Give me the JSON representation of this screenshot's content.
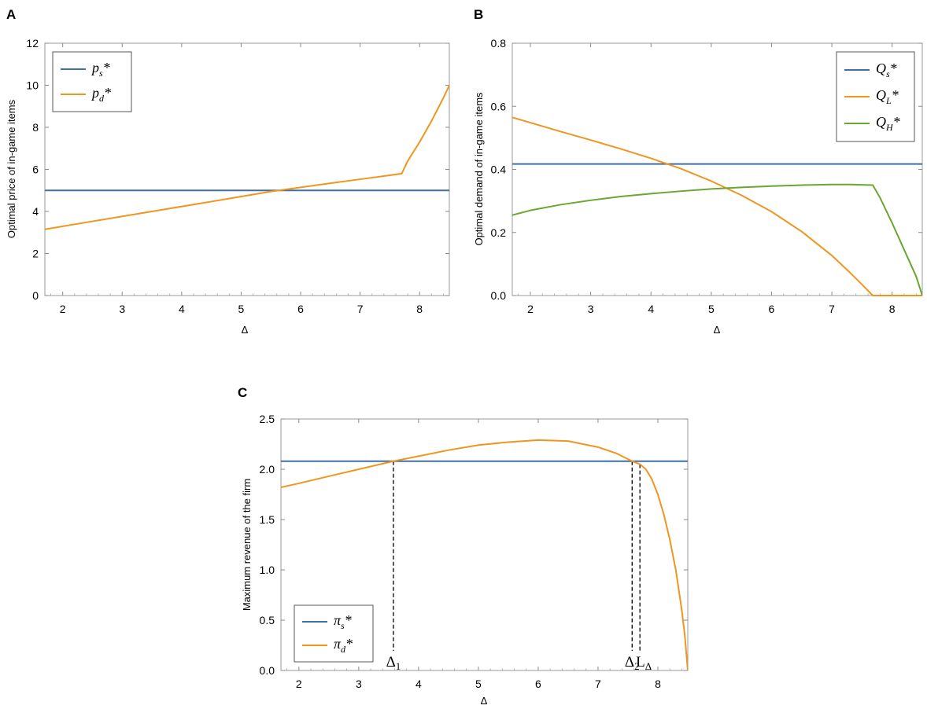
{
  "figure": {
    "panel_letters": [
      "A",
      "B",
      "C"
    ]
  },
  "chart_data": [
    {
      "panel": "A",
      "type": "line",
      "title": "",
      "xlabel": "Δ",
      "ylabel": "Optimal price of in-game items",
      "xlim": [
        1.7,
        8.5
      ],
      "ylim": [
        0,
        12
      ],
      "xticks": [
        2,
        3,
        4,
        5,
        6,
        7,
        8
      ],
      "yticks": [
        0,
        2,
        4,
        6,
        8,
        10,
        12
      ],
      "legend": "top-left",
      "series": [
        {
          "name": "p_s*",
          "label_main": "p",
          "label_sub": "s",
          "label_sup": "*",
          "color": "#3f6fa6",
          "x": [
            1.7,
            8.5
          ],
          "y": [
            5.0,
            5.0
          ]
        },
        {
          "name": "p_d*",
          "label_main": "p",
          "label_sub": "d",
          "label_sup": "*",
          "color": "#f0961e",
          "x": [
            1.7,
            2.5,
            3.5,
            4.5,
            5.5,
            6.5,
            7.0,
            7.5,
            7.7,
            7.8,
            7.9,
            8.0,
            8.1,
            8.2,
            8.3,
            8.4,
            8.5
          ],
          "y": [
            3.15,
            3.53,
            4.0,
            4.47,
            4.95,
            5.34,
            5.53,
            5.72,
            5.8,
            6.4,
            6.85,
            7.3,
            7.8,
            8.3,
            8.85,
            9.4,
            10.0
          ]
        }
      ]
    },
    {
      "panel": "B",
      "type": "line",
      "title": "",
      "xlabel": "Δ",
      "ylabel": "Optimal demand of in-game items",
      "xlim": [
        1.7,
        8.5
      ],
      "ylim": [
        0,
        0.8
      ],
      "xticks": [
        2,
        3,
        4,
        5,
        6,
        7,
        8
      ],
      "yticks": [
        0.0,
        0.2,
        0.4,
        0.6,
        0.8
      ],
      "ytick_labels": [
        "0.0",
        "0.2",
        "0.4",
        "0.6",
        "0.8"
      ],
      "legend": "top-right",
      "series": [
        {
          "name": "Q_s*",
          "label_main": "Q",
          "label_sub": "s",
          "label_sup": "*",
          "color": "#3f6fa6",
          "x": [
            1.7,
            8.5
          ],
          "y": [
            0.417,
            0.417
          ]
        },
        {
          "name": "Q_L*",
          "label_main": "Q",
          "label_sub": "L",
          "label_sup": "*",
          "color": "#f0961e",
          "x": [
            1.7,
            2.5,
            3.0,
            3.5,
            4.0,
            4.5,
            5.0,
            5.5,
            6.0,
            6.5,
            7.0,
            7.3,
            7.5,
            7.68,
            8.5
          ],
          "y": [
            0.565,
            0.52,
            0.493,
            0.465,
            0.435,
            0.402,
            0.363,
            0.318,
            0.266,
            0.203,
            0.127,
            0.073,
            0.035,
            0.0,
            0.0
          ]
        },
        {
          "name": "Q_H*",
          "label_main": "Q",
          "label_sub": "H",
          "label_sup": "*",
          "color": "#6aa632",
          "x": [
            1.7,
            2.0,
            2.5,
            3.0,
            3.5,
            4.0,
            4.5,
            5.0,
            5.5,
            6.0,
            6.5,
            7.0,
            7.3,
            7.68,
            7.8,
            8.0,
            8.2,
            8.4,
            8.5
          ],
          "y": [
            0.255,
            0.27,
            0.288,
            0.302,
            0.314,
            0.323,
            0.331,
            0.338,
            0.343,
            0.347,
            0.35,
            0.352,
            0.352,
            0.35,
            0.31,
            0.23,
            0.145,
            0.06,
            0.0
          ]
        }
      ]
    },
    {
      "panel": "C",
      "type": "line",
      "title": "",
      "xlabel": "Δ",
      "ylabel": "Maximum revenue of the firm",
      "xlim": [
        1.7,
        8.5
      ],
      "ylim": [
        0,
        2.5
      ],
      "xticks": [
        2,
        3,
        4,
        5,
        6,
        7,
        8
      ],
      "yticks": [
        0.0,
        0.5,
        1.0,
        1.5,
        2.0,
        2.5
      ],
      "ytick_labels": [
        "0.0",
        "0.5",
        "1.0",
        "1.5",
        "2.0",
        "2.5"
      ],
      "legend": "bottom-left",
      "series": [
        {
          "name": "π_s*",
          "label_main": "π",
          "label_sub": "s",
          "label_sup": "*",
          "color": "#3f6fa6",
          "x": [
            1.7,
            8.5
          ],
          "y": [
            2.08,
            2.08
          ]
        },
        {
          "name": "π_d*",
          "label_main": "π",
          "label_sub": "d",
          "label_sup": "*",
          "color": "#f0961e",
          "x": [
            1.7,
            2.0,
            2.5,
            3.0,
            3.58,
            4.0,
            4.5,
            5.0,
            5.5,
            6.0,
            6.5,
            7.0,
            7.3,
            7.57,
            7.7,
            7.8,
            7.9,
            8.0,
            8.1,
            8.2,
            8.3,
            8.4,
            8.45,
            8.5
          ],
          "y": [
            1.82,
            1.86,
            1.93,
            2.0,
            2.08,
            2.13,
            2.19,
            2.24,
            2.27,
            2.29,
            2.28,
            2.22,
            2.16,
            2.08,
            2.05,
            2.0,
            1.9,
            1.75,
            1.55,
            1.3,
            1.0,
            0.6,
            0.35,
            0.0
          ]
        }
      ],
      "annotations": [
        {
          "main": "Δ",
          "sub": "1",
          "x": 3.58,
          "y_top": 2.08
        },
        {
          "main": "Δ",
          "sub": "2",
          "x": 7.57,
          "y_top": 2.08
        },
        {
          "main": "L",
          "sub": "Δ",
          "x": 7.7,
          "y_top": 2.05
        }
      ]
    }
  ]
}
